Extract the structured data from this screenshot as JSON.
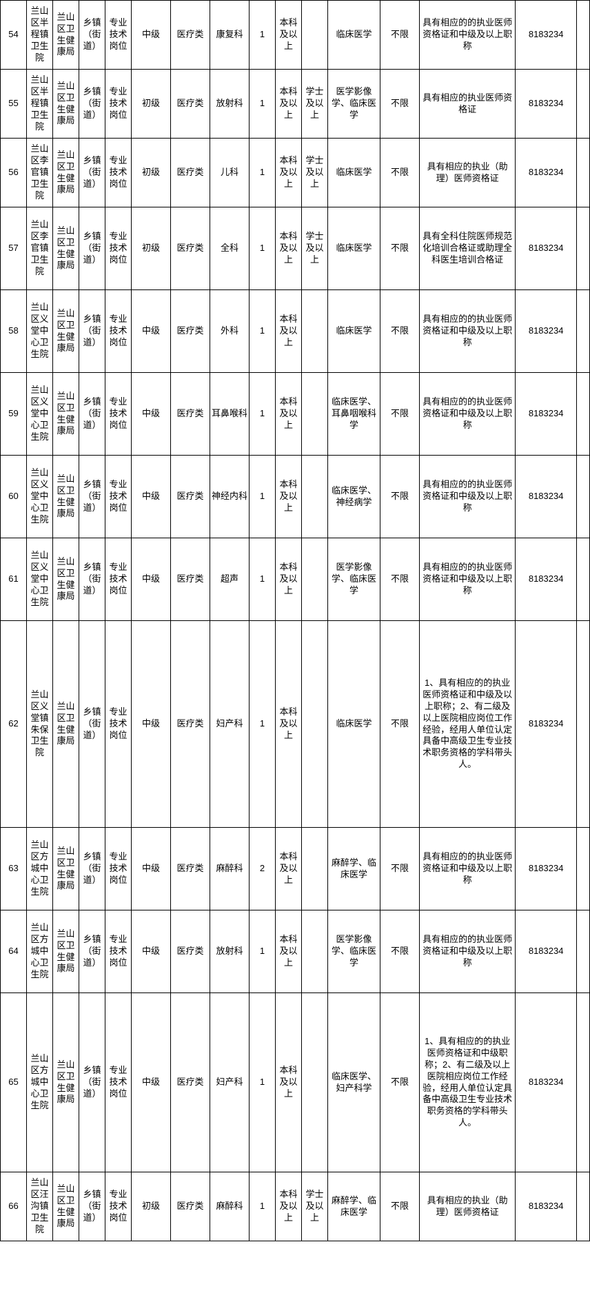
{
  "table": {
    "rows": [
      {
        "idx": "54",
        "unit": "兰山区半程镇卫生院",
        "dept": "兰山区卫生健康局",
        "town": "乡镇（街道）",
        "post": "专业技术岗位",
        "level": "中级",
        "cat": "医疗类",
        "subject": "康复科",
        "num": "1",
        "edu": "本科及以上",
        "degree": "",
        "major": "临床医学",
        "limit": "不限",
        "remark": "具有相应的的执业医师资格证和中级及以上职称",
        "phone": "8183234"
      },
      {
        "idx": "55",
        "unit": "兰山区半程镇卫生院",
        "dept": "兰山区卫生健康局",
        "town": "乡镇（街道）",
        "post": "专业技术岗位",
        "level": "初级",
        "cat": "医疗类",
        "subject": "放射科",
        "num": "1",
        "edu": "本科及以上",
        "degree": "学士及以上",
        "major": "医学影像学、临床医学",
        "limit": "不限",
        "remark": "具有相应的执业医师资格证",
        "phone": "8183234"
      },
      {
        "idx": "56",
        "unit": "兰山区李官镇卫生院",
        "dept": "兰山区卫生健康局",
        "town": "乡镇（街道）",
        "post": "专业技术岗位",
        "level": "初级",
        "cat": "医疗类",
        "subject": "儿科",
        "num": "1",
        "edu": "本科及以上",
        "degree": "学士及以上",
        "major": "临床医学",
        "limit": "不限",
        "remark": "具有相应的执业（助理）医师资格证",
        "phone": "8183234"
      },
      {
        "idx": "57",
        "unit": "兰山区李官镇卫生院",
        "dept": "兰山区卫生健康局",
        "town": "乡镇（街道）",
        "post": "专业技术岗位",
        "level": "初级",
        "cat": "医疗类",
        "subject": "全科",
        "num": "1",
        "edu": "本科及以上",
        "degree": "学士及以上",
        "major": "临床医学",
        "limit": "不限",
        "remark": "具有全科住院医师规范化培训合格证或助理全科医生培训合格证",
        "phone": "8183234"
      },
      {
        "idx": "58",
        "unit": "兰山区义堂中心卫生院",
        "dept": "兰山区卫生健康局",
        "town": "乡镇（街道）",
        "post": "专业技术岗位",
        "level": "中级",
        "cat": "医疗类",
        "subject": "外科",
        "num": "1",
        "edu": "本科及以上",
        "degree": "",
        "major": "临床医学",
        "limit": "不限",
        "remark": "具有相应的的执业医师资格证和中级及以上职称",
        "phone": "8183234"
      },
      {
        "idx": "59",
        "unit": "兰山区义堂中心卫生院",
        "dept": "兰山区卫生健康局",
        "town": "乡镇（街道）",
        "post": "专业技术岗位",
        "level": "中级",
        "cat": "医疗类",
        "subject": "耳鼻喉科",
        "num": "1",
        "edu": "本科及以上",
        "degree": "",
        "major": "临床医学、耳鼻咽喉科学",
        "limit": "不限",
        "remark": "具有相应的的执业医师资格证和中级及以上职称",
        "phone": "8183234"
      },
      {
        "idx": "60",
        "unit": "兰山区义堂中心卫生院",
        "dept": "兰山区卫生健康局",
        "town": "乡镇（街道）",
        "post": "专业技术岗位",
        "level": "中级",
        "cat": "医疗类",
        "subject": "神经内科",
        "num": "1",
        "edu": "本科及以上",
        "degree": "",
        "major": "临床医学、神经病学",
        "limit": "不限",
        "remark": "具有相应的的执业医师资格证和中级及以上职称",
        "phone": "8183234"
      },
      {
        "idx": "61",
        "unit": "兰山区义堂中心卫生院",
        "dept": "兰山区卫生健康局",
        "town": "乡镇（街道）",
        "post": "专业技术岗位",
        "level": "中级",
        "cat": "医疗类",
        "subject": "超声",
        "num": "1",
        "edu": "本科及以上",
        "degree": "",
        "major": "医学影像学、临床医学",
        "limit": "不限",
        "remark": "具有相应的的执业医师资格证和中级及以上职称",
        "phone": "8183234"
      },
      {
        "idx": "62",
        "unit": "兰山区义堂镇朱保卫生院",
        "dept": "兰山区卫生健康局",
        "town": "乡镇（街道）",
        "post": "专业技术岗位",
        "level": "中级",
        "cat": "医疗类",
        "subject": "妇产科",
        "num": "1",
        "edu": "本科及以上",
        "degree": "",
        "major": "临床医学",
        "limit": "不限",
        "remark": "1、具有相应的的执业医师资格证和中级及以上职称；2、有二级及以上医院相应岗位工作经验，经用人单位认定具备中高级卫生专业技术职务资格的学科带头人。",
        "phone": "8183234"
      },
      {
        "idx": "63",
        "unit": "兰山区方城中心卫生院",
        "dept": "兰山区卫生健康局",
        "town": "乡镇（街道）",
        "post": "专业技术岗位",
        "level": "中级",
        "cat": "医疗类",
        "subject": "麻醉科",
        "num": "2",
        "edu": "本科及以上",
        "degree": "",
        "major": "麻醉学、临床医学",
        "limit": "不限",
        "remark": "具有相应的的执业医师资格证和中级及以上职称",
        "phone": "8183234"
      },
      {
        "idx": "64",
        "unit": "兰山区方城中心卫生院",
        "dept": "兰山区卫生健康局",
        "town": "乡镇（街道）",
        "post": "专业技术岗位",
        "level": "中级",
        "cat": "医疗类",
        "subject": "放射科",
        "num": "1",
        "edu": "本科及以上",
        "degree": "",
        "major": "医学影像学、临床医学",
        "limit": "不限",
        "remark": "具有相应的的执业医师资格证和中级及以上职称",
        "phone": "8183234"
      },
      {
        "idx": "65",
        "unit": "兰山区方城中心卫生院",
        "dept": "兰山区卫生健康局",
        "town": "乡镇（街道）",
        "post": "专业技术岗位",
        "level": "中级",
        "cat": "医疗类",
        "subject": "妇产科",
        "num": "1",
        "edu": "本科及以上",
        "degree": "",
        "major": "临床医学、妇产科学",
        "limit": "不限",
        "remark": "1、具有相应的的执业医师资格证和中级职称；2、有二级及以上医院相应岗位工作经验，经用人单位认定具备中高级卫生专业技术职务资格的学科带头人。",
        "phone": "8183234"
      },
      {
        "idx": "66",
        "unit": "兰山区汪沟镇卫生院",
        "dept": "兰山区卫生健康局",
        "town": "乡镇（街道）",
        "post": "专业技术岗位",
        "level": "初级",
        "cat": "医疗类",
        "subject": "麻醉科",
        "num": "1",
        "edu": "本科及以上",
        "degree": "学士及以上",
        "major": "麻醉学、临床医学",
        "limit": "不限",
        "remark": "具有相应的执业（助理）医师资格证",
        "phone": "8183234"
      }
    ],
    "row_heights": {
      "54": "tall-row",
      "55": "tall-row",
      "56": "tall-row",
      "57": "extra-tall",
      "58": "extra-tall",
      "59": "extra-tall",
      "60": "extra-tall",
      "61": "extra-tall",
      "62": "huge-row",
      "63": "extra-tall",
      "64": "extra-tall",
      "65": "big-row",
      "66": "tall-row"
    },
    "colors": {
      "border": "#000000",
      "text": "#000000",
      "background": "#ffffff"
    }
  }
}
